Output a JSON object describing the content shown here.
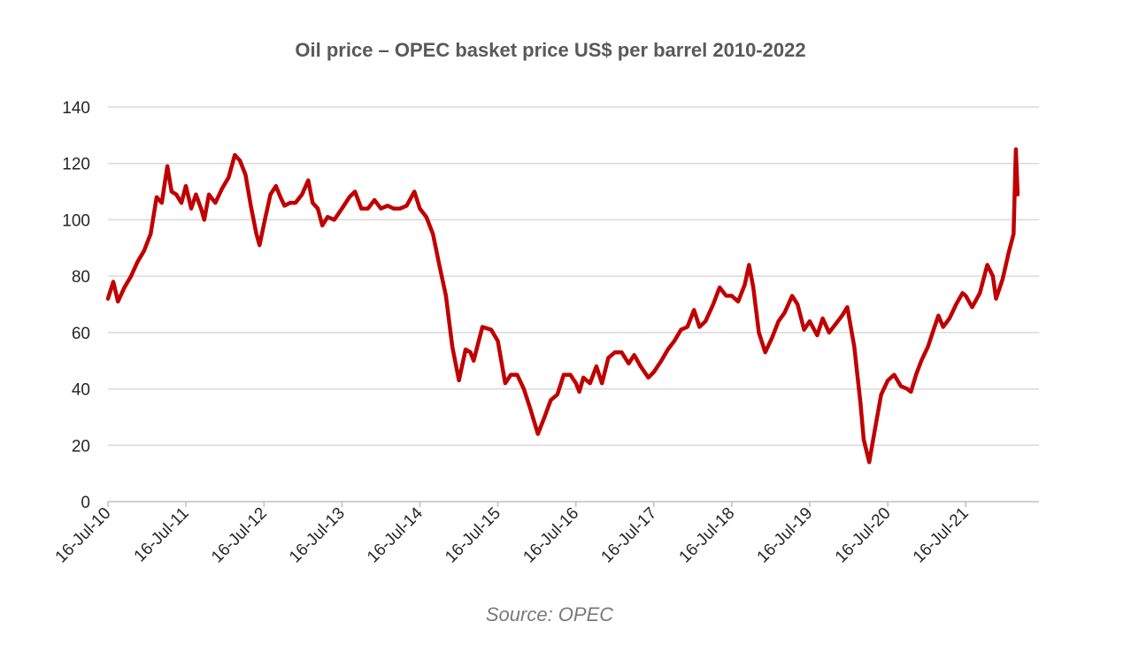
{
  "chart_data": {
    "type": "line",
    "title": "Oil price – OPEC basket price US$ per barrel 2010-2022",
    "source": "Source: OPEC",
    "xlabel": "",
    "ylabel": "",
    "ylim": [
      0,
      140
    ],
    "yticks": [
      0,
      20,
      40,
      60,
      80,
      100,
      120,
      140
    ],
    "xlim": [
      "2010-07-16",
      "2022-06-24"
    ],
    "x_tick_labels": [
      "16-Jul-10",
      "16-Jul-11",
      "16-Jul-12",
      "16-Jul-13",
      "16-Jul-14",
      "16-Jul-15",
      "16-Jul-16",
      "16-Jul-17",
      "16-Jul-18",
      "16-Jul-19",
      "16-Jul-20",
      "16-Jul-21"
    ],
    "x_tick_dates": [
      "2010-07-16",
      "2011-07-16",
      "2012-07-16",
      "2013-07-16",
      "2014-07-16",
      "2015-07-16",
      "2016-07-16",
      "2017-07-16",
      "2018-07-16",
      "2019-07-16",
      "2020-07-16",
      "2021-07-16"
    ],
    "grid": "horizontal",
    "legend": "none",
    "series": [
      {
        "color": "#c00000",
        "points": [
          [
            "2010-07-16",
            72
          ],
          [
            "2010-08-10",
            78
          ],
          [
            "2010-09-01",
            71
          ],
          [
            "2010-10-01",
            76
          ],
          [
            "2010-11-01",
            80
          ],
          [
            "2010-12-01",
            85
          ],
          [
            "2011-01-01",
            89
          ],
          [
            "2011-02-01",
            95
          ],
          [
            "2011-03-01",
            108
          ],
          [
            "2011-03-25",
            106
          ],
          [
            "2011-04-20",
            119
          ],
          [
            "2011-05-10",
            110
          ],
          [
            "2011-06-01",
            109
          ],
          [
            "2011-06-25",
            106
          ],
          [
            "2011-07-16",
            112
          ],
          [
            "2011-08-10",
            104
          ],
          [
            "2011-09-01",
            109
          ],
          [
            "2011-09-25",
            104
          ],
          [
            "2011-10-10",
            100
          ],
          [
            "2011-11-01",
            109
          ],
          [
            "2011-12-01",
            106
          ],
          [
            "2012-01-01",
            111
          ],
          [
            "2012-02-01",
            115
          ],
          [
            "2012-03-01",
            123
          ],
          [
            "2012-03-25",
            121
          ],
          [
            "2012-04-20",
            116
          ],
          [
            "2012-05-15",
            105
          ],
          [
            "2012-06-10",
            95
          ],
          [
            "2012-06-25",
            91
          ],
          [
            "2012-07-20",
            100
          ],
          [
            "2012-08-15",
            109
          ],
          [
            "2012-09-10",
            112
          ],
          [
            "2012-10-01",
            108
          ],
          [
            "2012-10-20",
            105
          ],
          [
            "2012-11-15",
            106
          ],
          [
            "2012-12-10",
            106
          ],
          [
            "2013-01-10",
            109
          ],
          [
            "2013-02-08",
            114
          ],
          [
            "2013-03-01",
            106
          ],
          [
            "2013-03-25",
            104
          ],
          [
            "2013-04-15",
            98
          ],
          [
            "2013-05-10",
            101
          ],
          [
            "2013-06-10",
            100
          ],
          [
            "2013-07-16",
            104
          ],
          [
            "2013-08-20",
            108
          ],
          [
            "2013-09-15",
            110
          ],
          [
            "2013-10-15",
            104
          ],
          [
            "2013-11-15",
            104
          ],
          [
            "2013-12-15",
            107
          ],
          [
            "2014-01-15",
            104
          ],
          [
            "2014-02-15",
            105
          ],
          [
            "2014-03-15",
            104
          ],
          [
            "2014-04-15",
            104
          ],
          [
            "2014-05-15",
            105
          ],
          [
            "2014-06-20",
            110
          ],
          [
            "2014-07-16",
            104
          ],
          [
            "2014-08-15",
            101
          ],
          [
            "2014-09-15",
            95
          ],
          [
            "2014-10-15",
            84
          ],
          [
            "2014-11-15",
            73
          ],
          [
            "2014-12-15",
            55
          ],
          [
            "2015-01-15",
            43
          ],
          [
            "2015-02-15",
            54
          ],
          [
            "2015-03-10",
            53
          ],
          [
            "2015-03-25",
            50
          ],
          [
            "2015-05-05",
            62
          ],
          [
            "2015-06-15",
            61
          ],
          [
            "2015-07-16",
            57
          ],
          [
            "2015-08-20",
            42
          ],
          [
            "2015-09-15",
            45
          ],
          [
            "2015-10-15",
            45
          ],
          [
            "2015-11-15",
            40
          ],
          [
            "2015-12-15",
            33
          ],
          [
            "2016-01-20",
            24
          ],
          [
            "2016-02-20",
            30
          ],
          [
            "2016-03-20",
            36
          ],
          [
            "2016-04-20",
            38
          ],
          [
            "2016-05-20",
            45
          ],
          [
            "2016-06-20",
            45
          ],
          [
            "2016-07-16",
            42
          ],
          [
            "2016-08-01",
            39
          ],
          [
            "2016-08-20",
            44
          ],
          [
            "2016-09-20",
            42
          ],
          [
            "2016-10-20",
            48
          ],
          [
            "2016-11-15",
            42
          ],
          [
            "2016-12-15",
            51
          ],
          [
            "2017-01-15",
            53
          ],
          [
            "2017-02-15",
            53
          ],
          [
            "2017-03-20",
            49
          ],
          [
            "2017-04-15",
            52
          ],
          [
            "2017-05-15",
            48
          ],
          [
            "2017-06-20",
            44
          ],
          [
            "2017-07-16",
            46
          ],
          [
            "2017-08-20",
            50
          ],
          [
            "2017-09-20",
            54
          ],
          [
            "2017-10-20",
            57
          ],
          [
            "2017-11-20",
            61
          ],
          [
            "2017-12-20",
            62
          ],
          [
            "2018-01-20",
            68
          ],
          [
            "2018-02-15",
            62
          ],
          [
            "2018-03-15",
            64
          ],
          [
            "2018-04-20",
            70
          ],
          [
            "2018-05-20",
            76
          ],
          [
            "2018-06-20",
            73
          ],
          [
            "2018-07-16",
            73
          ],
          [
            "2018-08-15",
            71
          ],
          [
            "2018-09-15",
            77
          ],
          [
            "2018-10-05",
            84
          ],
          [
            "2018-10-25",
            76
          ],
          [
            "2018-11-20",
            60
          ],
          [
            "2018-12-20",
            53
          ],
          [
            "2019-01-20",
            58
          ],
          [
            "2019-02-20",
            64
          ],
          [
            "2019-03-20",
            67
          ],
          [
            "2019-04-25",
            73
          ],
          [
            "2019-05-20",
            70
          ],
          [
            "2019-06-20",
            61
          ],
          [
            "2019-07-16",
            64
          ],
          [
            "2019-08-20",
            59
          ],
          [
            "2019-09-15",
            65
          ],
          [
            "2019-10-15",
            60
          ],
          [
            "2019-11-15",
            63
          ],
          [
            "2019-12-15",
            66
          ],
          [
            "2020-01-08",
            69
          ],
          [
            "2020-02-10",
            55
          ],
          [
            "2020-03-10",
            35
          ],
          [
            "2020-03-25",
            22
          ],
          [
            "2020-04-20",
            14
          ],
          [
            "2020-05-15",
            25
          ],
          [
            "2020-06-15",
            38
          ],
          [
            "2020-07-16",
            43
          ],
          [
            "2020-08-15",
            45
          ],
          [
            "2020-09-15",
            41
          ],
          [
            "2020-10-15",
            40
          ],
          [
            "2020-11-01",
            39
          ],
          [
            "2020-11-25",
            45
          ],
          [
            "2020-12-20",
            50
          ],
          [
            "2021-01-20",
            55
          ],
          [
            "2021-02-20",
            62
          ],
          [
            "2021-03-10",
            66
          ],
          [
            "2021-04-01",
            62
          ],
          [
            "2021-05-01",
            65
          ],
          [
            "2021-06-01",
            70
          ],
          [
            "2021-07-01",
            74
          ],
          [
            "2021-07-16",
            73
          ],
          [
            "2021-08-15",
            69
          ],
          [
            "2021-09-20",
            74
          ],
          [
            "2021-10-25",
            84
          ],
          [
            "2021-11-20",
            80
          ],
          [
            "2021-12-05",
            72
          ],
          [
            "2022-01-05",
            79
          ],
          [
            "2022-02-01",
            88
          ],
          [
            "2022-02-25",
            95
          ],
          [
            "2022-03-08",
            125
          ],
          [
            "2022-03-16",
            109
          ]
        ]
      }
    ]
  }
}
